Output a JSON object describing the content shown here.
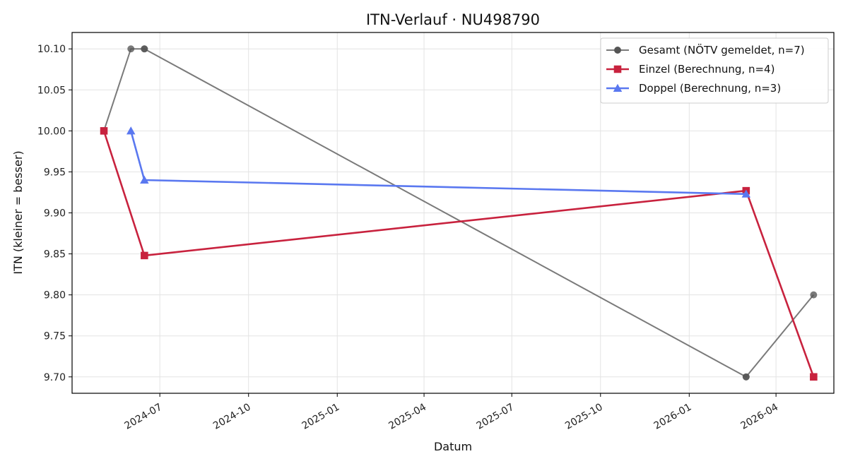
{
  "chart_data": {
    "type": "line",
    "title": "ITN-Verlauf · NU498790",
    "xlabel": "Datum",
    "ylabel": "ITN  (kleiner = besser)",
    "x_is_date": true,
    "xlim": [
      "2024-04-01",
      "2026-05-31"
    ],
    "ylim": [
      9.68,
      10.12
    ],
    "x_ticks": [
      "2024-07",
      "2024-10",
      "2025-01",
      "2025-04",
      "2025-07",
      "2025-10",
      "2026-01",
      "2026-04"
    ],
    "y_ticks": [
      "9.70",
      "9.75",
      "9.80",
      "9.85",
      "9.90",
      "9.95",
      "10.00",
      "10.05",
      "10.10"
    ],
    "grid": true,
    "legend_position": "top-right",
    "series": [
      {
        "name": "Gesamt (NÖTV gemeldet, n=7)",
        "color": "#555555",
        "marker": "circle",
        "points": [
          {
            "x": "2024-05-04",
            "y": 10.0
          },
          {
            "x": "2024-06-01",
            "y": 10.1
          },
          {
            "x": "2024-06-15",
            "y": 10.1
          },
          {
            "x": "2024-06-15",
            "y": 10.1
          },
          {
            "x": "2026-03-01",
            "y": 9.7
          },
          {
            "x": "2026-03-01",
            "y": 9.7
          },
          {
            "x": "2026-05-10",
            "y": 9.8
          }
        ]
      },
      {
        "name": "Einzel (Berechnung, n=4)",
        "color": "#c8223e",
        "marker": "square",
        "points": [
          {
            "x": "2024-05-04",
            "y": 10.0
          },
          {
            "x": "2024-06-15",
            "y": 9.848
          },
          {
            "x": "2026-03-01",
            "y": 9.927
          },
          {
            "x": "2026-05-10",
            "y": 9.7
          }
        ]
      },
      {
        "name": "Doppel (Berechnung, n=3)",
        "color": "#5a78f0",
        "marker": "triangle",
        "points": [
          {
            "x": "2024-06-01",
            "y": 10.0
          },
          {
            "x": "2024-06-15",
            "y": 9.94
          },
          {
            "x": "2026-03-01",
            "y": 9.923
          }
        ]
      }
    ]
  }
}
